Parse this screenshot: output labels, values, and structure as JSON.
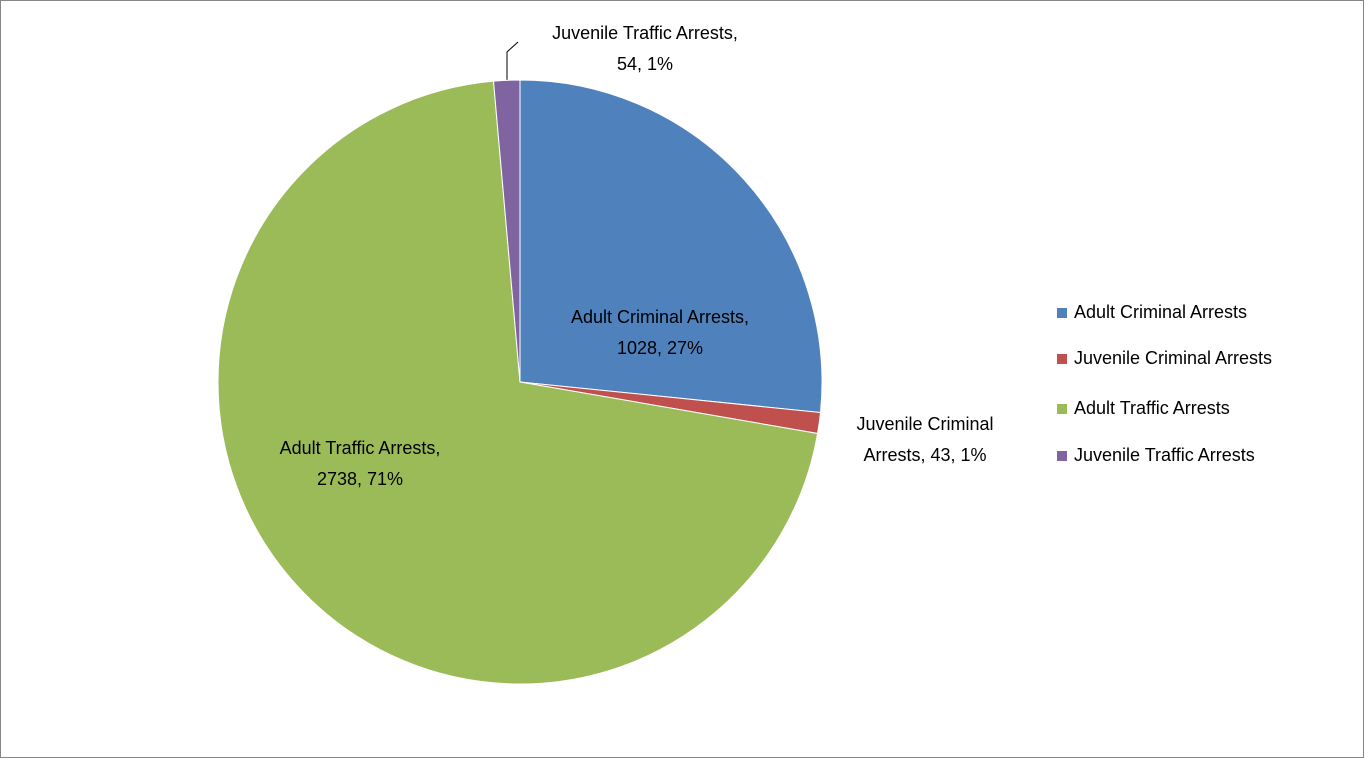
{
  "chart_data": {
    "type": "pie",
    "categories": [
      "Adult Criminal Arrests",
      "Juvenile Criminal Arrests",
      "Adult Traffic Arrests",
      "Juvenile Traffic Arrests"
    ],
    "values": [
      1028,
      43,
      2738,
      54
    ],
    "value_labels": [
      [
        "Adult Criminal Arrests,",
        "1028, 27%"
      ],
      [
        "Juvenile Criminal",
        "Arrests, 43, 1%"
      ],
      [
        "Adult Traffic Arrests,",
        "2738, 71%"
      ],
      [
        "Juvenile Traffic Arrests,",
        "54, 1%"
      ]
    ],
    "colors": [
      "#4f81bd",
      "#c0504d",
      "#9bbb59",
      "#8064a2"
    ],
    "legend": "right"
  }
}
